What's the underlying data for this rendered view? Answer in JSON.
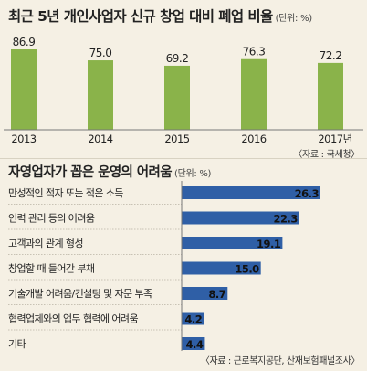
{
  "chart_data": [
    {
      "type": "bar",
      "title": "최근 5년 개인사업자 신규 창업 대비 폐업 비율",
      "unit": "(단위: %)",
      "categories": [
        "2013",
        "2014",
        "2015",
        "2016",
        "2017년"
      ],
      "values": [
        86.9,
        75.0,
        69.2,
        76.3,
        72.2
      ],
      "value_labels": [
        "86.9",
        "75.0",
        "69.2",
        "76.3",
        "72.2"
      ],
      "source": "〈자료 : 국세청〉",
      "bar_color": "#8ab34a"
    },
    {
      "type": "bar",
      "orientation": "horizontal",
      "title": "자영업자가 꼽은 운영의 어려움",
      "unit": "(단위: %)",
      "categories": [
        "만성적인 적자 또는 적은 소득",
        "인력 관리 등의 어려움",
        "고객과의 관계 형성",
        "창업할 때 들어간 부채",
        "기술개발 어려움/컨설팅 및 자문 부족",
        "협력업체와의 업무 협력에 어려움",
        "기타"
      ],
      "values": [
        26.3,
        22.3,
        19.1,
        15.0,
        8.7,
        4.2,
        4.4
      ],
      "value_labels": [
        "26.3",
        "22.3",
        "19.1",
        "15.0",
        "8.7",
        "4.2",
        "4.4"
      ],
      "source": "〈자료 : 근로복지공단, 산재보험패널조사〉",
      "bar_color": "#2f5fa6"
    }
  ]
}
